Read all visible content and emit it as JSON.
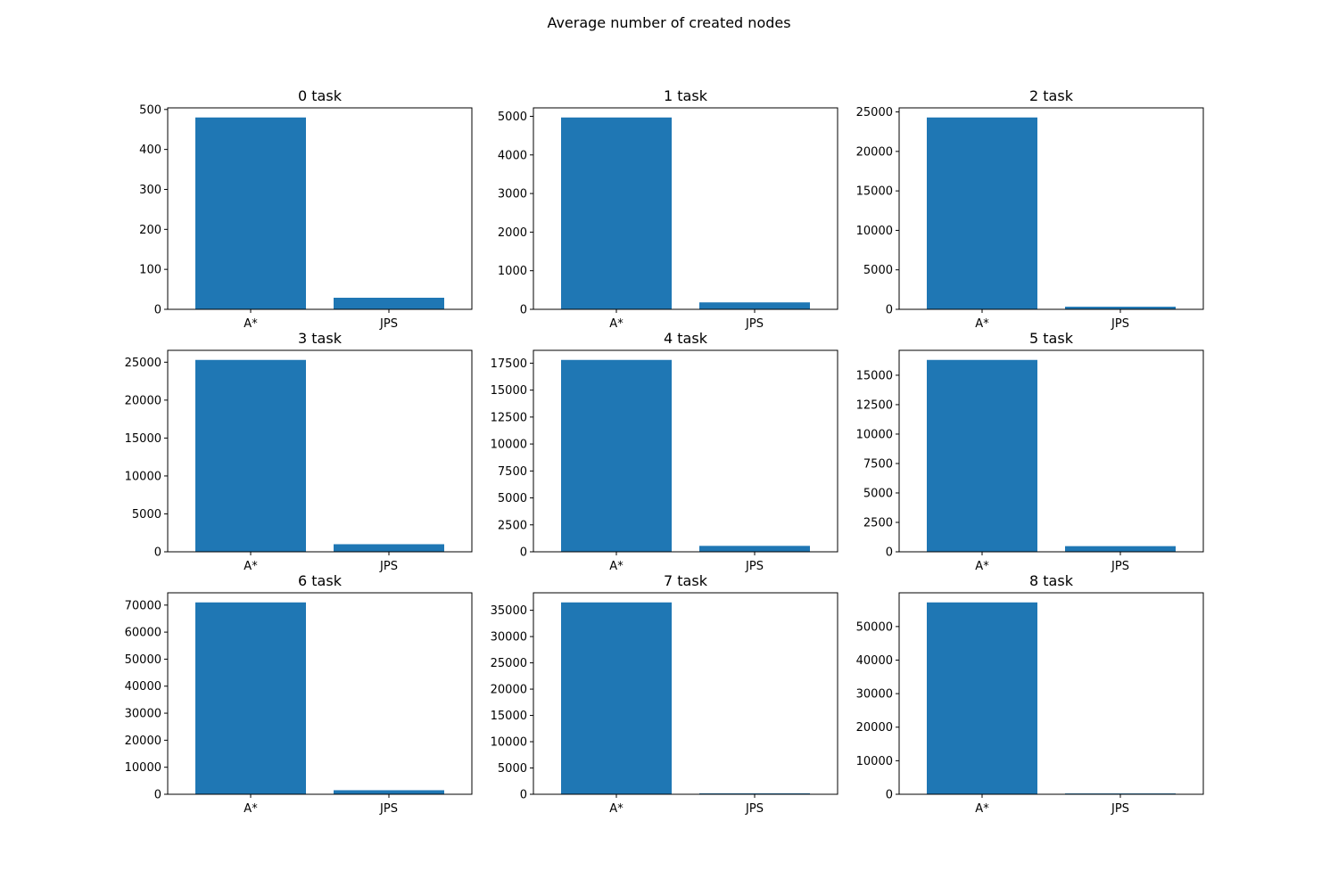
{
  "figure": {
    "title": "Average number of created nodes"
  },
  "chart_data": [
    {
      "type": "bar",
      "title": "0 task",
      "categories": [
        "A*",
        "JPS"
      ],
      "values": [
        480,
        29
      ],
      "ylim": [
        0,
        504
      ],
      "yticks": [
        0,
        100,
        200,
        300,
        400,
        500
      ],
      "grid": false,
      "color": "#1f77b4"
    },
    {
      "type": "bar",
      "title": "1 task",
      "categories": [
        "A*",
        "JPS"
      ],
      "values": [
        4970,
        180
      ],
      "ylim": [
        0,
        5219
      ],
      "yticks": [
        0,
        1000,
        2000,
        3000,
        4000,
        5000
      ],
      "grid": false,
      "color": "#1f77b4"
    },
    {
      "type": "bar",
      "title": "2 task",
      "categories": [
        "A*",
        "JPS"
      ],
      "values": [
        24300,
        330
      ],
      "ylim": [
        0,
        25515
      ],
      "yticks": [
        0,
        5000,
        10000,
        15000,
        20000,
        25000
      ],
      "grid": false,
      "color": "#1f77b4"
    },
    {
      "type": "bar",
      "title": "3 task",
      "categories": [
        "A*",
        "JPS"
      ],
      "values": [
        25300,
        1000
      ],
      "ylim": [
        0,
        26565
      ],
      "yticks": [
        0,
        5000,
        10000,
        15000,
        20000,
        25000
      ],
      "grid": false,
      "color": "#1f77b4"
    },
    {
      "type": "bar",
      "title": "4 task",
      "categories": [
        "A*",
        "JPS"
      ],
      "values": [
        17800,
        550
      ],
      "ylim": [
        0,
        18690
      ],
      "yticks": [
        0,
        2500,
        5000,
        7500,
        10000,
        12500,
        15000,
        17500
      ],
      "grid": false,
      "color": "#1f77b4"
    },
    {
      "type": "bar",
      "title": "5 task",
      "categories": [
        "A*",
        "JPS"
      ],
      "values": [
        16300,
        480
      ],
      "ylim": [
        0,
        17115
      ],
      "yticks": [
        0,
        2500,
        5000,
        7500,
        10000,
        12500,
        15000
      ],
      "grid": false,
      "color": "#1f77b4"
    },
    {
      "type": "bar",
      "title": "6 task",
      "categories": [
        "A*",
        "JPS"
      ],
      "values": [
        71000,
        1500
      ],
      "ylim": [
        0,
        74550
      ],
      "yticks": [
        0,
        10000,
        20000,
        30000,
        40000,
        50000,
        60000,
        70000
      ],
      "grid": false,
      "color": "#1f77b4"
    },
    {
      "type": "bar",
      "title": "7 task",
      "categories": [
        "A*",
        "JPS"
      ],
      "values": [
        36500,
        180
      ],
      "ylim": [
        0,
        38325
      ],
      "yticks": [
        0,
        5000,
        10000,
        15000,
        20000,
        25000,
        30000,
        35000
      ],
      "grid": false,
      "color": "#1f77b4"
    },
    {
      "type": "bar",
      "title": "8 task",
      "categories": [
        "A*",
        "JPS"
      ],
      "values": [
        57200,
        250
      ],
      "ylim": [
        0,
        60060
      ],
      "yticks": [
        0,
        10000,
        20000,
        30000,
        40000,
        50000
      ],
      "grid": false,
      "color": "#1f77b4"
    }
  ]
}
